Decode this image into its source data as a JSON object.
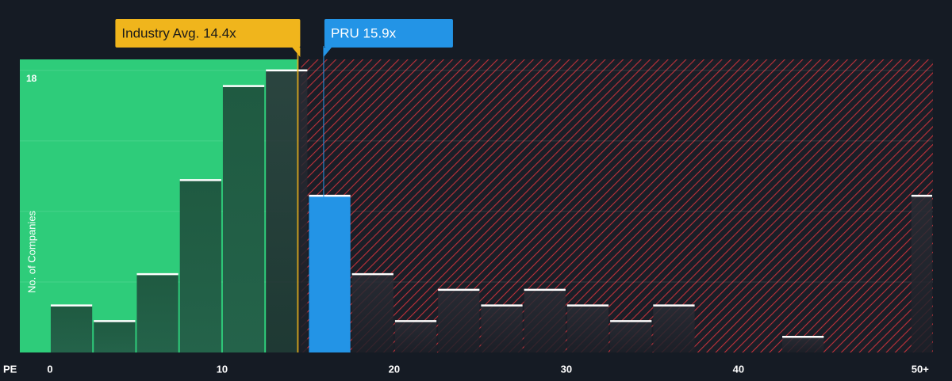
{
  "chart_data": {
    "type": "histogram",
    "bins": [
      0,
      2.5,
      5,
      7.5,
      10,
      12.5,
      15,
      17.5,
      20,
      22.5,
      25,
      27.5,
      30,
      32.5,
      35,
      37.5,
      40,
      42.5,
      45,
      47.5,
      50,
      51.3
    ],
    "values": [
      3,
      2,
      5,
      11,
      17,
      18,
      10,
      5,
      2,
      4,
      3,
      4,
      3,
      2,
      3,
      0,
      0,
      1,
      0,
      0,
      10
    ],
    "xlim": [
      -1.75,
      51.3
    ],
    "ylim": [
      0,
      18.7
    ],
    "xticks": [
      0,
      10,
      20,
      30,
      40,
      {
        "value": 50,
        "label": "50+"
      }
    ],
    "yticks": [
      18
    ],
    "gridlines": [
      4.5,
      9,
      13.5,
      18
    ],
    "xlabel": "PE",
    "ylabel": "No. of Companies",
    "markers": [
      {
        "label": "Industry Avg. 14.4x",
        "value": 14.4,
        "color": "#f0b51c"
      },
      {
        "label": "PRU 15.9x",
        "value": 15.9,
        "color": "#2394e6"
      }
    ],
    "below_color": "#2ecc7a",
    "above_color": "#c0323a"
  }
}
